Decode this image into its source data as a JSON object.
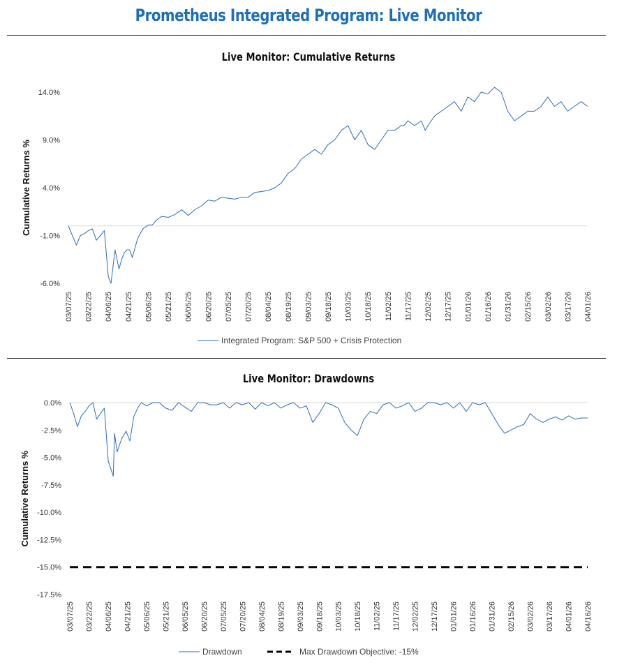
{
  "page": {
    "title": "Prometheus Integrated Program: Live Monitor"
  },
  "colors": {
    "accent": "#1f6fb6",
    "series": "#2e6bb5",
    "objective": "#000000",
    "axis": "#d9d9d9"
  },
  "chart_data": [
    {
      "type": "line",
      "title": "Live Monitor: Cumulative Returns",
      "xlabel": "",
      "ylabel": "Cumulative Returns %",
      "ylim": [
        -6.0,
        14.0
      ],
      "yticks": [
        -6.0,
        -1.0,
        4.0,
        9.0,
        14.0
      ],
      "ytick_labels": [
        "-6.0%",
        "-1.0%",
        "4.0%",
        "9.0%",
        "14.0%"
      ],
      "x_tick_labels": [
        "03/07/25",
        "03/22/25",
        "04/06/25",
        "04/21/25",
        "05/06/25",
        "05/21/25",
        "06/05/25",
        "06/20/25",
        "07/05/25",
        "07/20/25",
        "08/04/25",
        "08/19/25",
        "09/03/25",
        "09/18/25",
        "10/03/25",
        "10/18/25",
        "11/02/25",
        "11/17/25",
        "12/02/25",
        "12/17/25",
        "01/01/26",
        "01/16/26",
        "01/31/26",
        "02/15/26",
        "03/02/26",
        "03/17/26",
        "04/01/26"
      ],
      "x_range_days": [
        0,
        390
      ],
      "grid": false,
      "legend": "bottom",
      "series": [
        {
          "name": "Integrated Program: S&P 500 + Crisis Protection",
          "x": [
            0,
            3,
            6,
            9,
            12,
            15,
            18,
            21,
            24,
            27,
            30,
            32,
            35,
            38,
            40,
            42,
            44,
            46,
            48,
            52,
            56,
            60,
            63,
            66,
            70,
            75,
            80,
            85,
            90,
            95,
            100,
            105,
            110,
            115,
            120,
            125,
            130,
            135,
            140,
            145,
            150,
            155,
            160,
            165,
            170,
            175,
            180,
            185,
            190,
            195,
            200,
            205,
            210,
            215,
            220,
            225,
            230,
            235,
            240,
            245,
            250,
            252,
            255,
            260,
            265,
            268,
            270,
            275,
            280,
            285,
            290,
            295,
            300,
            305,
            310,
            315,
            320,
            325,
            330,
            335,
            340,
            345,
            350,
            355,
            360,
            365,
            370,
            375,
            380,
            385,
            390
          ],
          "values": [
            0,
            -1.0,
            -2.0,
            -1.0,
            -0.8,
            -0.5,
            -0.3,
            -1.5,
            -1.0,
            -0.5,
            -5.3,
            -6.0,
            -2.5,
            -4.5,
            -3.5,
            -2.8,
            -2.5,
            -2.5,
            -3.3,
            -1.3,
            -0.3,
            0.1,
            0.1,
            0.6,
            1.0,
            0.9,
            1.2,
            1.7,
            1.1,
            1.7,
            2.1,
            2.7,
            2.6,
            3.0,
            2.9,
            2.8,
            3.0,
            3.0,
            3.5,
            3.6,
            3.7,
            4.0,
            4.5,
            5.5,
            6.0,
            7.0,
            7.5,
            8.0,
            7.5,
            8.5,
            9.0,
            10.0,
            10.5,
            9.0,
            10.0,
            8.5,
            8.0,
            9.0,
            10.0,
            10.0,
            10.5,
            10.5,
            11.0,
            10.5,
            11.0,
            10.0,
            10.5,
            11.5,
            12.0,
            12.5,
            13.0,
            12.0,
            13.5,
            13.0,
            14.0,
            13.8,
            14.5,
            14.0,
            12.0,
            11.0,
            11.5,
            12.0,
            12.0,
            12.5,
            13.5,
            12.5,
            13.0,
            12.0,
            12.5,
            13.0,
            12.5
          ]
        }
      ]
    },
    {
      "type": "line",
      "title": "Live Monitor: Drawdowns",
      "xlabel": "",
      "ylabel": "Cumulative Returns %",
      "ylim": [
        -17.5,
        0.0
      ],
      "yticks": [
        0.0,
        -2.5,
        -5.0,
        -7.5,
        -10.0,
        -12.5,
        -15.0,
        -17.5
      ],
      "ytick_labels": [
        "0.0%",
        "-2.5%",
        "-5.0%",
        "-7.5%",
        "-10.0%",
        "-12.5%",
        "-15.0%",
        "-17.5%"
      ],
      "x_tick_labels": [
        "03/07/25",
        "03/22/25",
        "04/06/25",
        "04/21/25",
        "05/06/25",
        "05/21/25",
        "06/05/25",
        "06/20/25",
        "07/05/25",
        "07/20/25",
        "08/04/25",
        "08/19/25",
        "09/03/25",
        "09/18/25",
        "10/03/25",
        "10/18/25",
        "11/02/25",
        "11/17/25",
        "12/02/25",
        "12/17/25",
        "01/01/26",
        "01/16/26",
        "01/31/26",
        "02/15/26",
        "03/02/26",
        "03/17/26",
        "04/01/26",
        "04/16/26"
      ],
      "x_range_days": [
        0,
        405
      ],
      "grid": false,
      "legend": "bottom",
      "series": [
        {
          "name": "Drawdown",
          "x": [
            0,
            3,
            6,
            9,
            12,
            15,
            18,
            21,
            24,
            27,
            30,
            32,
            34,
            35,
            37,
            39,
            41,
            44,
            47,
            50,
            53,
            56,
            60,
            65,
            70,
            75,
            80,
            85,
            90,
            95,
            100,
            105,
            110,
            115,
            120,
            125,
            130,
            135,
            140,
            145,
            150,
            155,
            160,
            165,
            170,
            175,
            180,
            185,
            190,
            195,
            200,
            205,
            210,
            215,
            220,
            225,
            230,
            235,
            240,
            245,
            250,
            255,
            260,
            265,
            270,
            275,
            280,
            285,
            290,
            295,
            300,
            305,
            310,
            315,
            320,
            325,
            330,
            335,
            340,
            345,
            350,
            355,
            360,
            365,
            370,
            375,
            380,
            385,
            390,
            395,
            400,
            405
          ],
          "values": [
            0,
            -1.0,
            -2.2,
            -1.2,
            -0.8,
            -0.3,
            0,
            -1.5,
            -1.0,
            -0.5,
            -5.3,
            -6.0,
            -6.7,
            -2.8,
            -4.5,
            -3.8,
            -3.2,
            -2.6,
            -3.5,
            -1.3,
            -0.5,
            0,
            -0.3,
            0,
            0,
            -0.5,
            -0.7,
            0,
            -0.4,
            -0.8,
            0,
            0,
            -0.2,
            -0.2,
            0,
            -0.5,
            0,
            -0.2,
            0,
            -0.6,
            0,
            -0.3,
            0,
            -0.5,
            -0.2,
            0,
            -0.5,
            -0.3,
            -1.8,
            -1.0,
            0,
            -0.2,
            -0.5,
            -1.8,
            -2.5,
            -3.0,
            -1.5,
            -0.8,
            -1.0,
            -0.2,
            0,
            -0.5,
            -0.3,
            0,
            -0.8,
            -0.5,
            0,
            0,
            -0.2,
            0,
            -0.5,
            0,
            -0.8,
            0,
            -0.2,
            0,
            -1.0,
            -2.0,
            -2.8,
            -2.5,
            -2.2,
            -2.0,
            -1.0,
            -1.5,
            -1.8,
            -1.5,
            -1.3,
            -1.6,
            -1.2,
            -1.5,
            -1.4,
            -1.4
          ]
        },
        {
          "name": "Max Drawdown Objective: -15%",
          "x": [
            0,
            405
          ],
          "values": [
            -15.0,
            -15.0
          ],
          "style": "dashed"
        }
      ]
    }
  ]
}
